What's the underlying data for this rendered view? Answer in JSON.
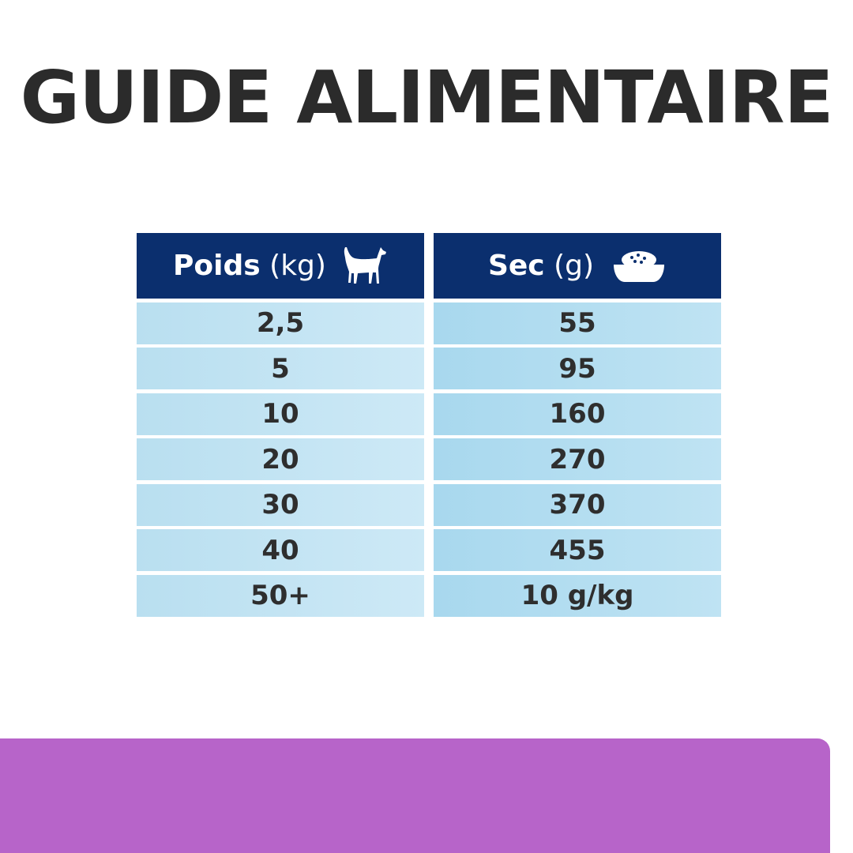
{
  "title": "GUIDE ALIMENTAIRE",
  "table": {
    "columns": [
      {
        "label": "Poids",
        "unit": "(kg)",
        "icon": "dog-icon"
      },
      {
        "label": "Sec",
        "unit": "(g)",
        "icon": "food-bowl-icon"
      }
    ],
    "rows": [
      [
        "2,5",
        "55"
      ],
      [
        "5",
        "95"
      ],
      [
        "10",
        "160"
      ],
      [
        "20",
        "270"
      ],
      [
        "30",
        "370"
      ],
      [
        "40",
        "455"
      ],
      [
        "50+",
        "10 g/kg"
      ]
    ]
  },
  "colors": {
    "header": "#0b2f6e",
    "row": "#bfe3f3",
    "band": "#b764c9",
    "title": "#2b2b2b"
  }
}
